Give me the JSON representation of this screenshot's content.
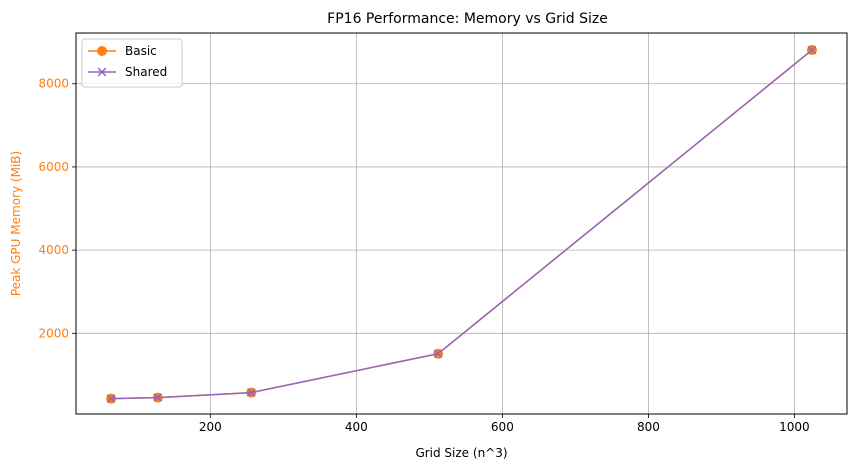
{
  "chart_data": {
    "type": "line",
    "title": "FP16 Performance: Memory vs Grid Size",
    "xlabel": "Grid Size (n^3)",
    "ylabel": "Peak GPU Memory (MiB)",
    "xlim": [
      16,
      1072
    ],
    "ylim": [
      60,
      9220
    ],
    "x_ticks": [
      200,
      400,
      600,
      800,
      1000
    ],
    "y_ticks": [
      2000,
      4000,
      6000,
      8000
    ],
    "grid": true,
    "legend_position": "top-left",
    "x": [
      64,
      128,
      256,
      512,
      1024
    ],
    "series": [
      {
        "name": "Basic",
        "values": [
          430,
          455,
          575,
          1510,
          8810
        ],
        "color": "#ff7f0e",
        "marker": "circle"
      },
      {
        "name": "Shared",
        "values": [
          430,
          455,
          575,
          1510,
          8810
        ],
        "color": "#9467bd",
        "marker": "x"
      }
    ],
    "ylabel_color": "#ff7f0e",
    "ytick_color": "#ff7f0e"
  }
}
